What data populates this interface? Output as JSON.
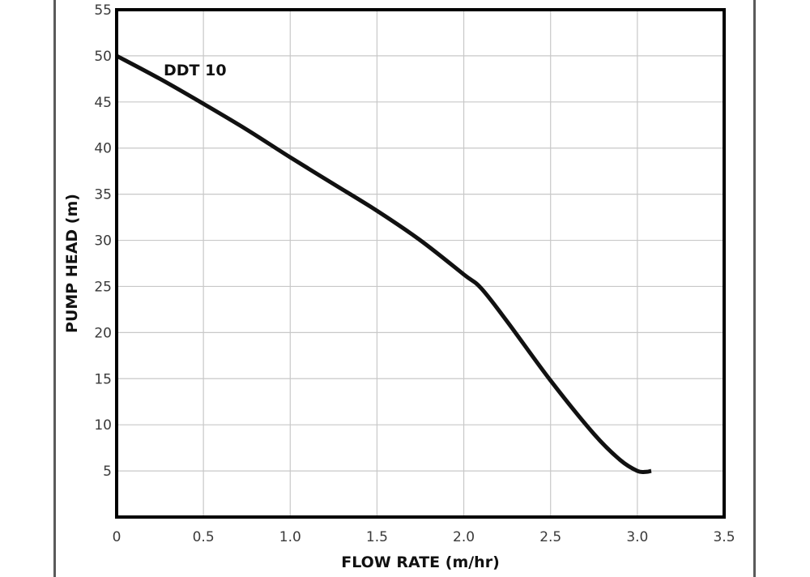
{
  "chart_data": {
    "type": "line",
    "title": "",
    "xlabel": "FLOW RATE (m/hr)",
    "ylabel": "PUMP HEAD (m)",
    "xlim": [
      0,
      3.5
    ],
    "ylim": [
      0,
      55
    ],
    "xticks": [
      "0",
      "0.5",
      "1.0",
      "1.5",
      "2.0",
      "2.5",
      "3.0",
      "3.5"
    ],
    "xtick_values": [
      0,
      0.5,
      1.0,
      1.5,
      2.0,
      2.5,
      3.0,
      3.5
    ],
    "yticks": [
      "5",
      "10",
      "15",
      "20",
      "25",
      "30",
      "35",
      "40",
      "45",
      "50",
      "55"
    ],
    "ytick_values": [
      5,
      10,
      15,
      20,
      25,
      30,
      35,
      40,
      45,
      50,
      55
    ],
    "grid": true,
    "series": [
      {
        "name": "DDT 10",
        "x": [
          0,
          0.25,
          0.5,
          0.75,
          1.0,
          1.25,
          1.5,
          1.75,
          2.0,
          2.1,
          2.25,
          2.5,
          2.75,
          2.9,
          3.0,
          3.05,
          3.08
        ],
        "y": [
          50,
          47.5,
          44.8,
          42.0,
          39.0,
          36.1,
          33.2,
          30.0,
          26.3,
          24.8,
          21.2,
          14.8,
          9.0,
          6.2,
          5.0,
          4.9,
          5.0
        ]
      }
    ],
    "colors": {
      "background": "#ffffff",
      "plot_background": "#ffffff",
      "frame": "#000000",
      "grid": "#c8c8c8",
      "line": "#111111",
      "page_edge": "#5a5a5a"
    }
  }
}
